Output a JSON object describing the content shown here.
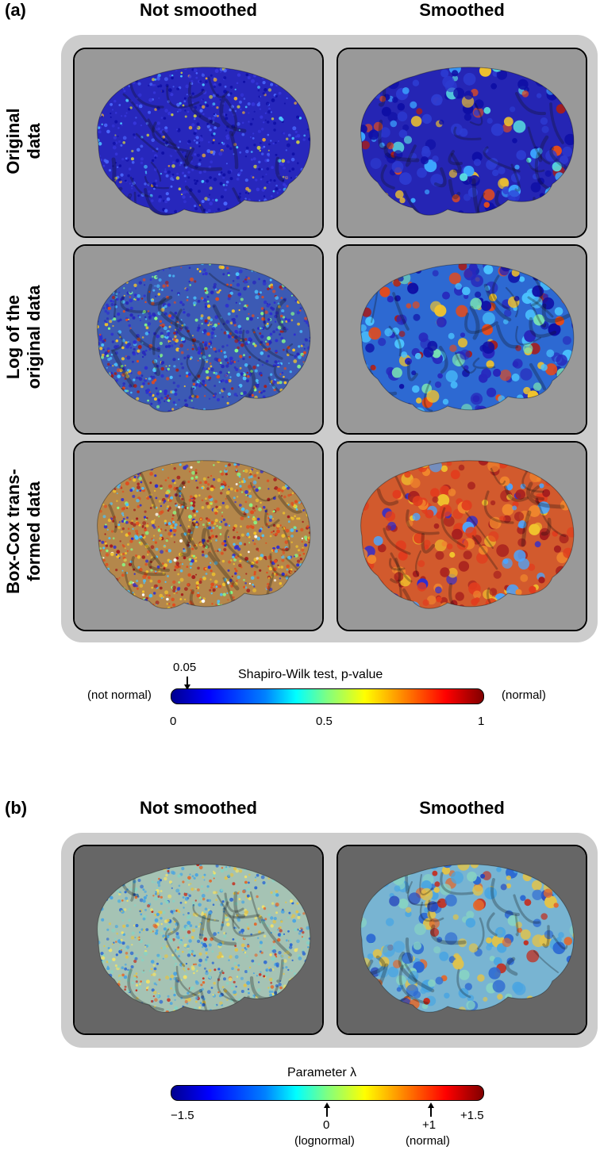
{
  "panel_a": {
    "label": "(a)",
    "col_titles": [
      "Not smoothed",
      "Smoothed"
    ],
    "row_labels": [
      "Original\ndata",
      "Log of the\noriginal data",
      "Box-Cox trans-\nformed data"
    ],
    "tiles": [
      {
        "row": 0,
        "col": 0,
        "scheme": "blue_speckle"
      },
      {
        "row": 0,
        "col": 1,
        "scheme": "blue_blobs"
      },
      {
        "row": 1,
        "col": 0,
        "scheme": "mixed_speckle"
      },
      {
        "row": 1,
        "col": 1,
        "scheme": "mixed_blobs"
      },
      {
        "row": 2,
        "col": 0,
        "scheme": "warm_speckle"
      },
      {
        "row": 2,
        "col": 1,
        "scheme": "warm_blobs"
      }
    ],
    "colorbar": {
      "title": "Shapiro-Wilk test, p-value",
      "left_label": "(not normal)",
      "right_label": "(normal)",
      "min_label": "0",
      "mid_label": "0.5",
      "max_label": "1",
      "marker_label": "0.05",
      "marker_value": 0.05,
      "range": [
        0,
        1
      ]
    }
  },
  "panel_b": {
    "label": "(b)",
    "col_titles": [
      "Not smoothed",
      "Smoothed"
    ],
    "tiles": [
      {
        "col": 0,
        "scheme": "lambda_speckle"
      },
      {
        "col": 1,
        "scheme": "lambda_blobs"
      }
    ],
    "colorbar": {
      "title": "Parameter λ",
      "min_label": "−1.5",
      "max_label": "+1.5",
      "zero_label": "0",
      "zero_note": "(lognormal)",
      "one_label": "+1",
      "one_note": "(normal)",
      "zero_value": 0,
      "one_value": 1,
      "range": [
        -1.5,
        1.5
      ]
    }
  },
  "colors": {
    "group_bg": "#cccccc",
    "tile_bg_a": "#999999",
    "tile_bg_b": "#666666"
  }
}
